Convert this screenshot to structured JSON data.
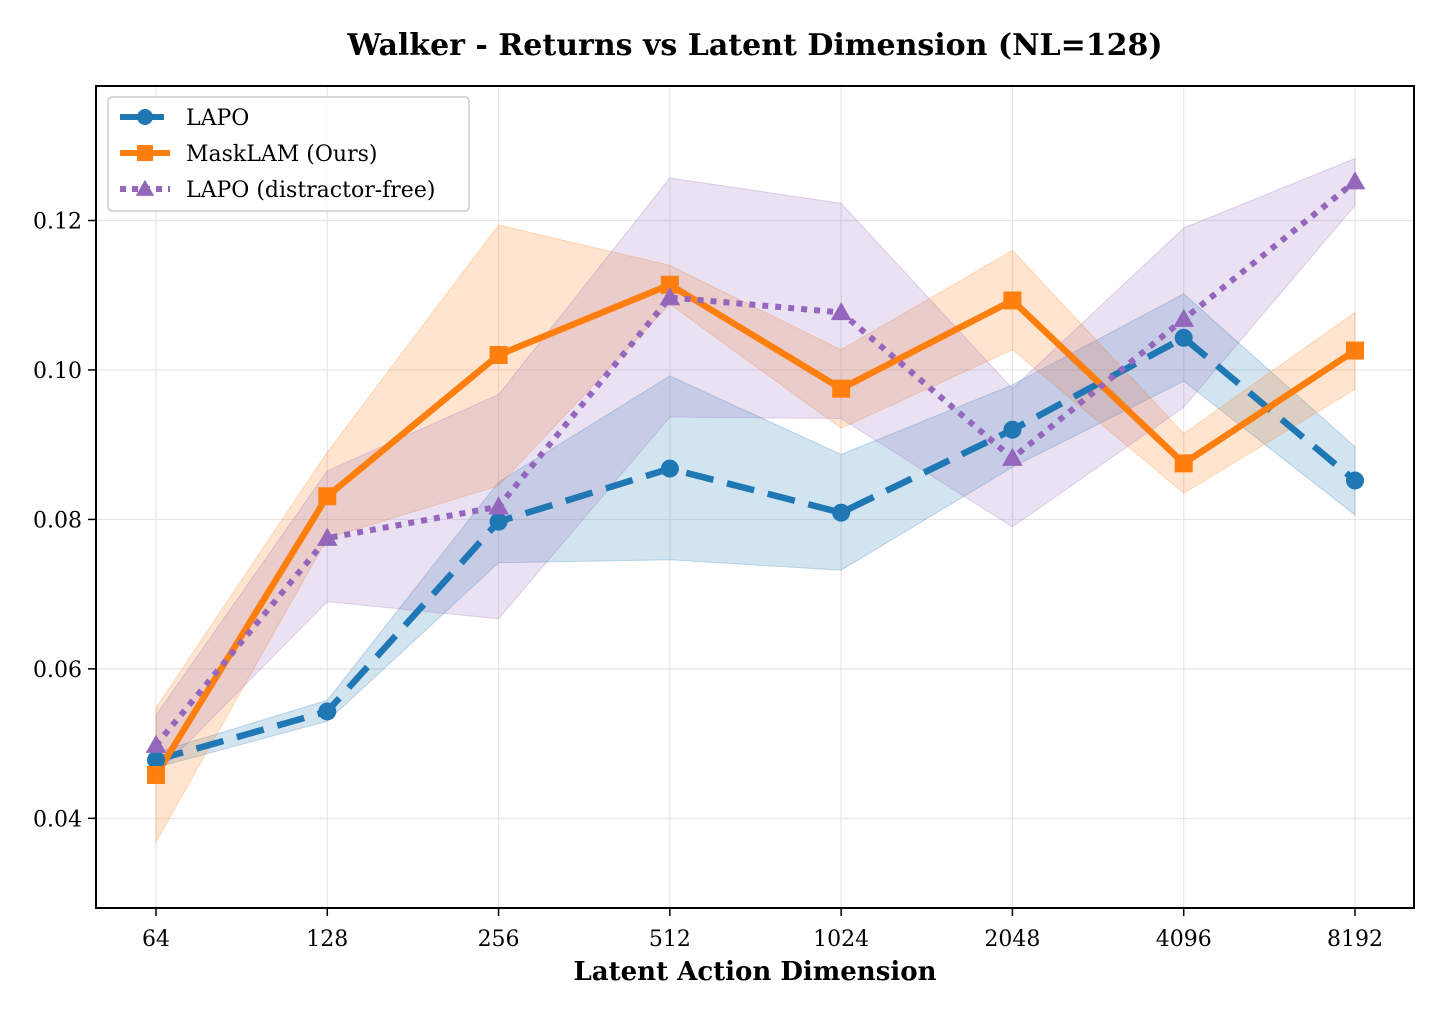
{
  "chart_data": {
    "type": "line",
    "title": "Walker - Returns vs Latent Dimension (NL=128)",
    "xlabel": "Latent Action Dimension",
    "ylabel": "",
    "categories": [
      "64",
      "128",
      "256",
      "512",
      "1024",
      "2048",
      "4096",
      "8192"
    ],
    "ylim": [
      0.028,
      0.138
    ],
    "yticks": [
      "0.04",
      "0.06",
      "0.08",
      "0.10",
      "0.12"
    ],
    "ytick_values": [
      0.04,
      0.06,
      0.08,
      0.1,
      0.12
    ],
    "grid": true,
    "legend_position": "top-left",
    "series": [
      {
        "name": "LAPO",
        "color": "#1f77b4",
        "style": "dashed",
        "marker": "circle",
        "values": [
          0.0478,
          0.0543,
          0.0797,
          0.0868,
          0.0809,
          0.092,
          0.1043,
          0.0852
        ],
        "lower": [
          0.0468,
          0.053,
          0.0742,
          0.0746,
          0.0732,
          0.087,
          0.0985,
          0.0806
        ],
        "upper": [
          0.0488,
          0.0558,
          0.085,
          0.0992,
          0.0887,
          0.098,
          0.1102,
          0.0897
        ]
      },
      {
        "name": "MaskLAM (Ours)",
        "color": "#ff7f0e",
        "style": "solid",
        "marker": "square",
        "values": [
          0.0458,
          0.0831,
          0.102,
          0.1114,
          0.0975,
          0.1093,
          0.0875,
          0.1026
        ],
        "lower": [
          0.0368,
          0.0775,
          0.0845,
          0.1088,
          0.0922,
          0.1027,
          0.0835,
          0.0974
        ],
        "upper": [
          0.0548,
          0.089,
          0.1194,
          0.114,
          0.1027,
          0.116,
          0.0915,
          0.1077
        ]
      },
      {
        "name": "LAPO (distractor-free)",
        "color": "#9467bd",
        "style": "dotted",
        "marker": "triangle",
        "values": [
          0.0498,
          0.0775,
          0.0817,
          0.1097,
          0.1077,
          0.0882,
          0.1068,
          0.1252
        ],
        "lower": [
          0.0458,
          0.069,
          0.0667,
          0.0937,
          0.0935,
          0.079,
          0.095,
          0.122
        ],
        "upper": [
          0.0538,
          0.0865,
          0.0967,
          0.1257,
          0.1223,
          0.0975,
          0.119,
          0.1283
        ]
      }
    ]
  }
}
